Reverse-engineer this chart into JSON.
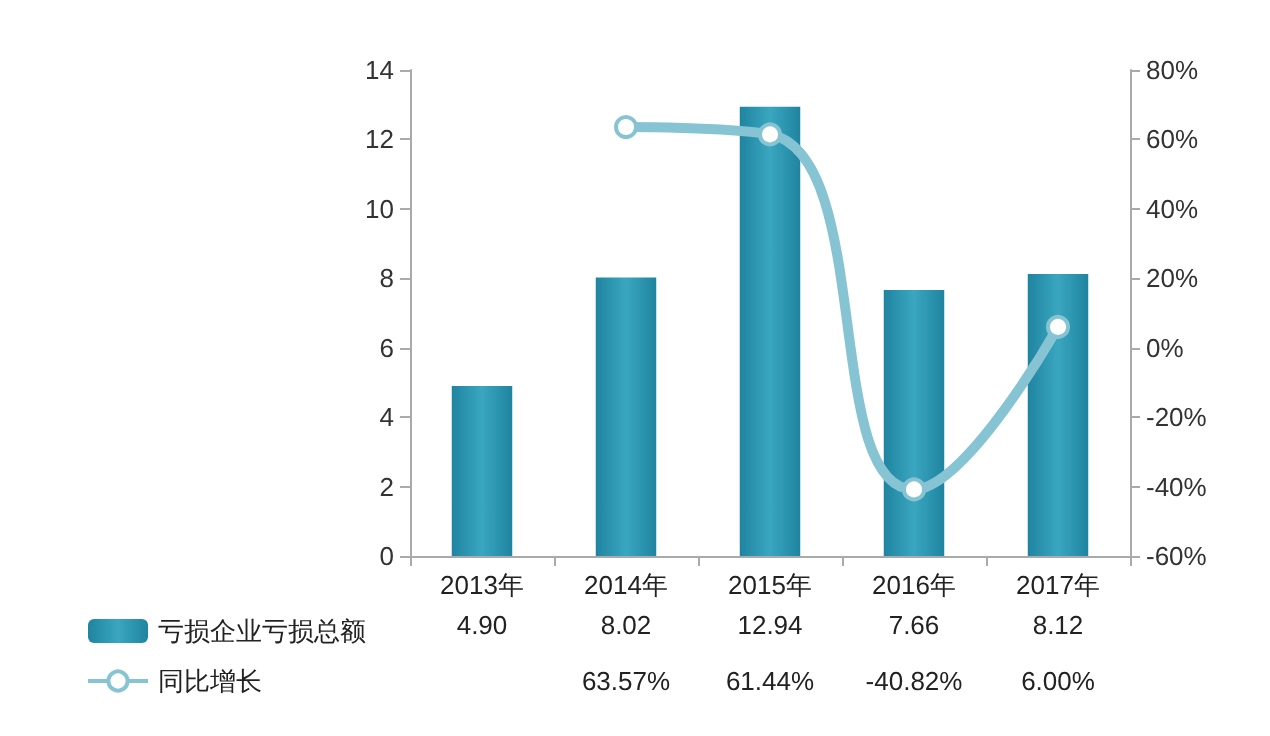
{
  "chart_data": {
    "type": "bar",
    "categories": [
      "2013年",
      "2014年",
      "2015年",
      "2016年",
      "2017年"
    ],
    "series": [
      {
        "name": "亏损企业亏损总额",
        "color": "#1f84a0",
        "values": [
          4.9,
          8.02,
          12.94,
          7.66,
          8.12
        ],
        "value_labels": [
          "4.90",
          "8.02",
          "12.94",
          "7.66",
          "8.12"
        ]
      },
      {
        "name": "同比增长",
        "type": "line",
        "axis": "y2",
        "color": "#86c3d3",
        "values": [
          null,
          63.57,
          61.44,
          -40.82,
          6.0
        ],
        "value_labels": [
          null,
          "63.57%",
          "61.44%",
          "-40.82%",
          "6.00%"
        ]
      }
    ],
    "ylim": [
      0,
      14
    ],
    "yticks": [
      0,
      2,
      4,
      6,
      8,
      10,
      12,
      14
    ],
    "y2lim": [
      -60,
      80
    ],
    "y2ticks": [
      {
        "value": -60,
        "label": "-60%"
      },
      {
        "value": -40,
        "label": "-40%"
      },
      {
        "value": -20,
        "label": "-20%"
      },
      {
        "value": 0,
        "label": "0%"
      },
      {
        "value": 20,
        "label": "20%"
      },
      {
        "value": 40,
        "label": "40%"
      },
      {
        "value": 60,
        "label": "60%"
      },
      {
        "value": 80,
        "label": "80%"
      }
    ],
    "data_labels": true,
    "legend": "bottom left",
    "marker": "circle",
    "grid": false
  }
}
